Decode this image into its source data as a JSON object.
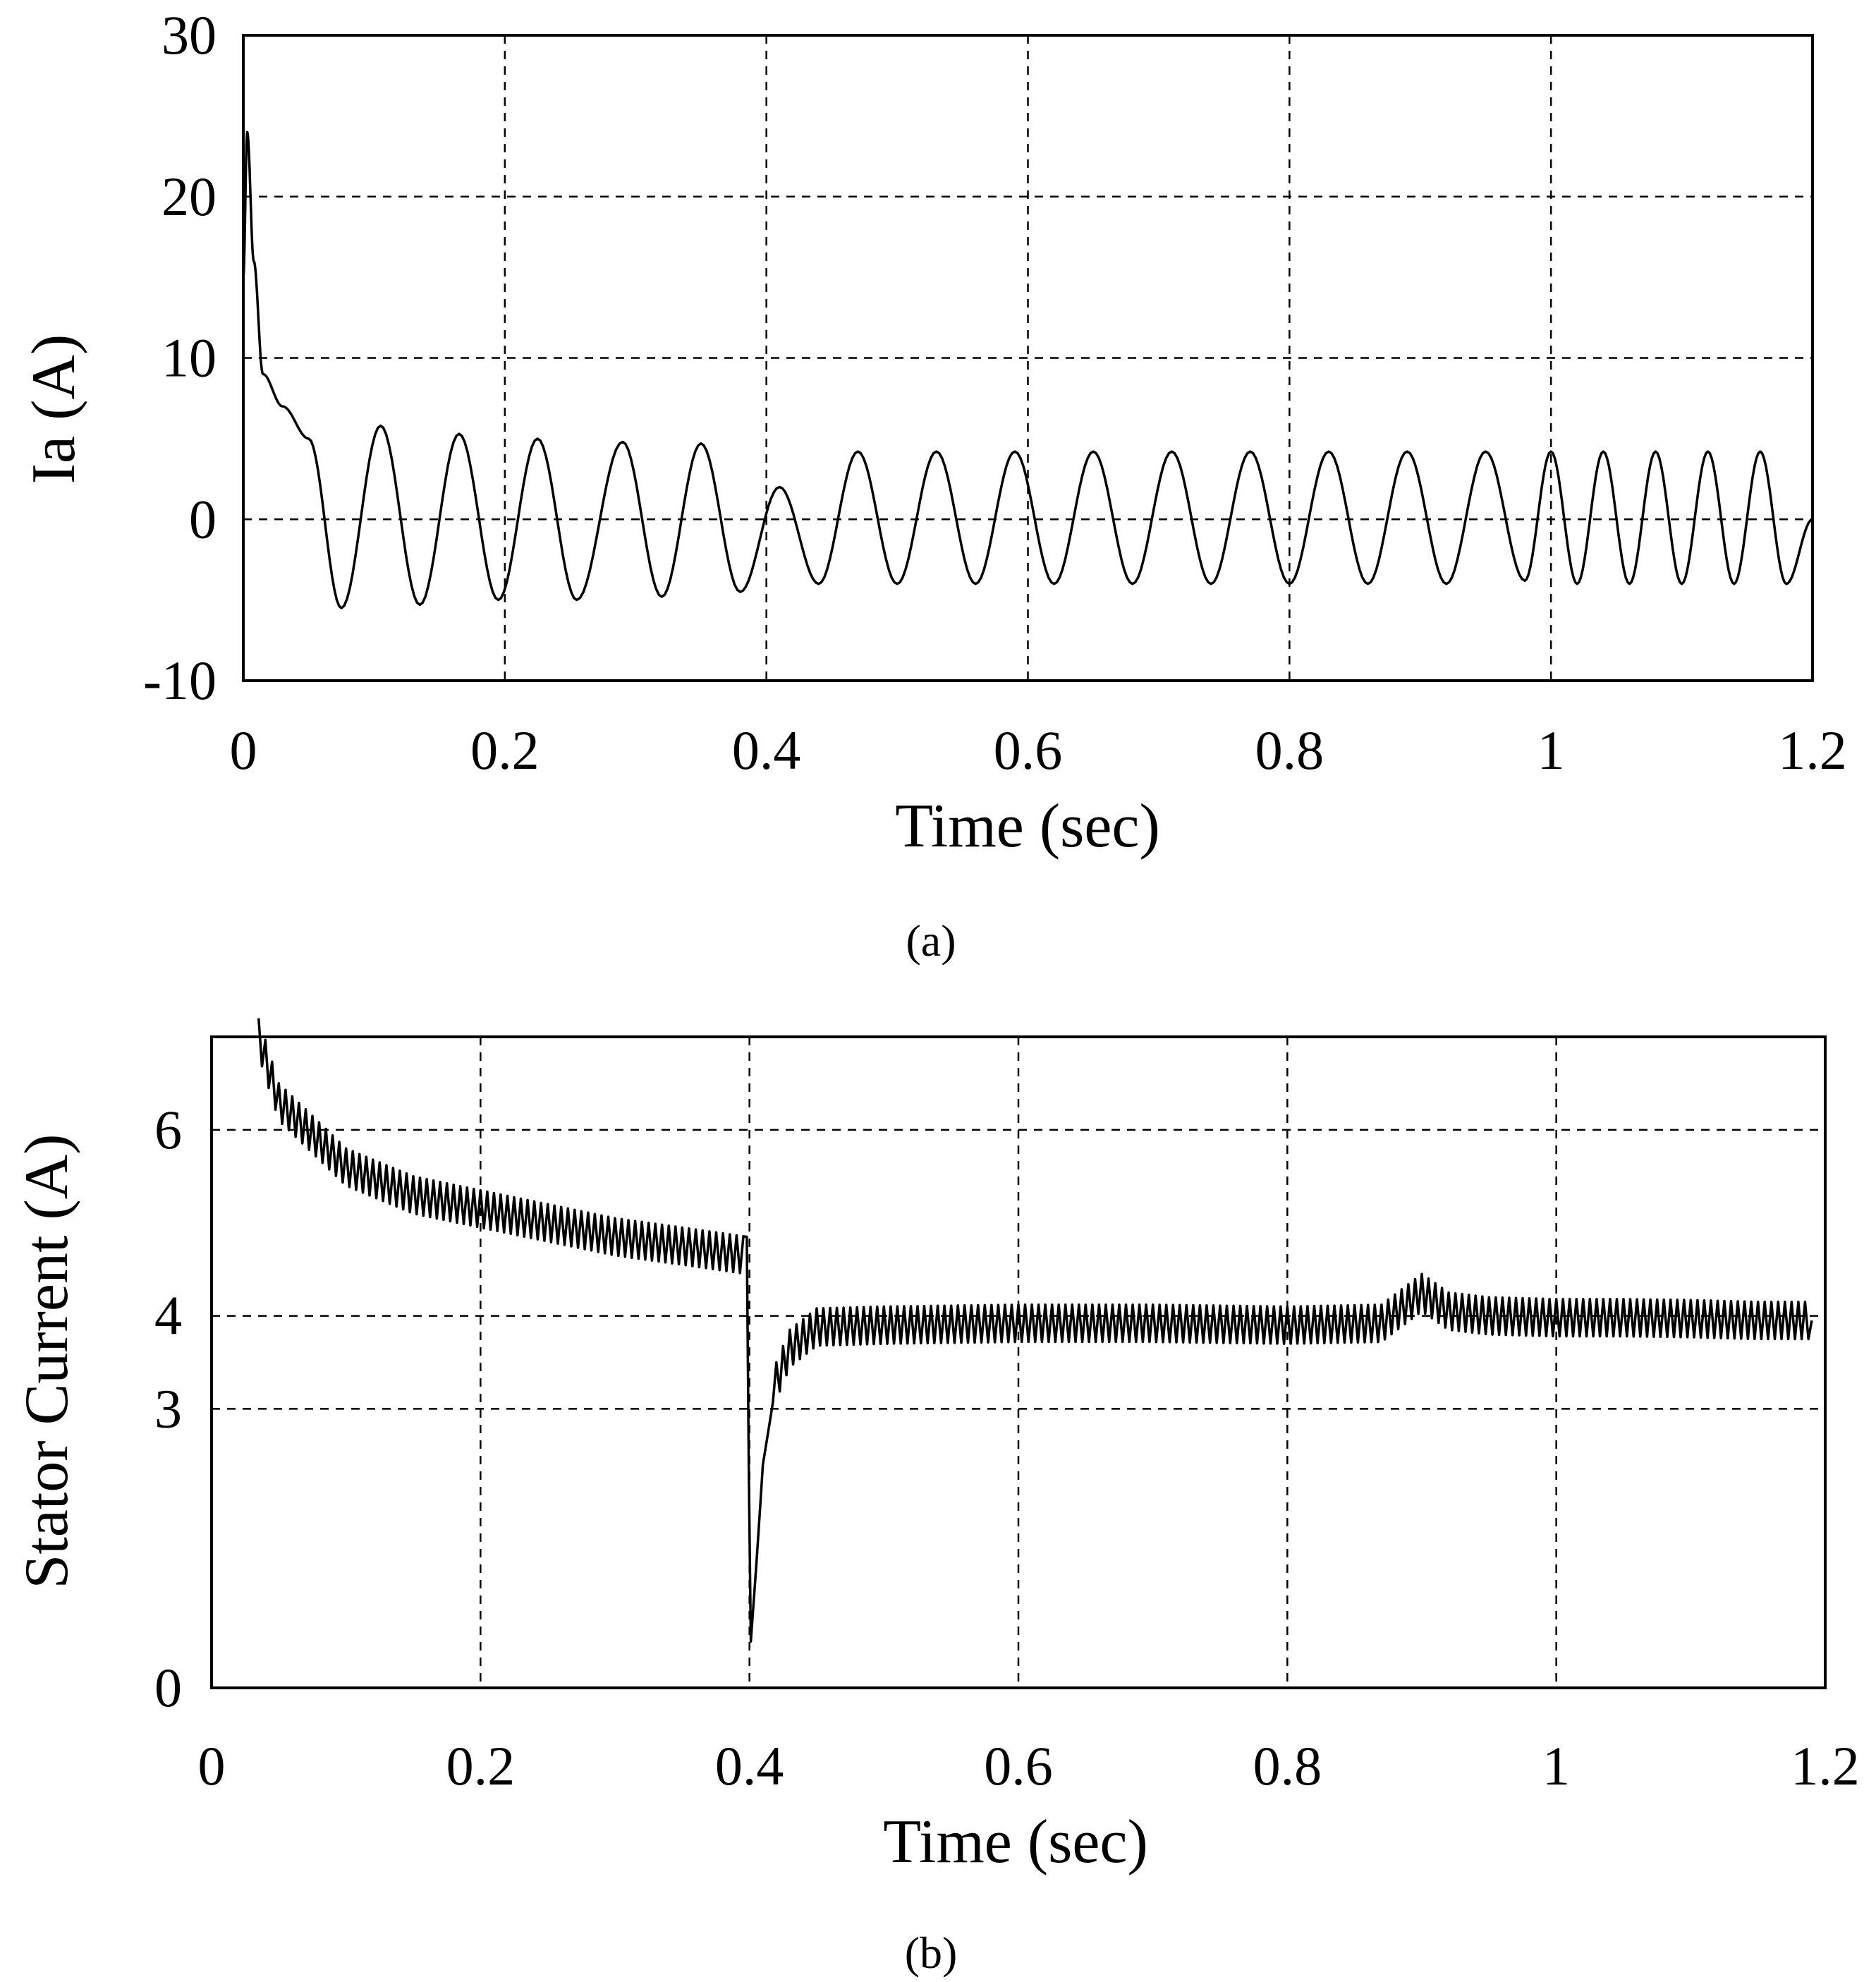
{
  "chart_data": [
    {
      "id": "a",
      "type": "line",
      "xlabel": "Time (sec)",
      "ylabel": "Ia (A)",
      "caption": "(a)",
      "xlim": [
        0,
        1.2
      ],
      "ylim": [
        -10,
        30
      ],
      "xticks": [
        0,
        0.2,
        0.4,
        0.6,
        0.8,
        1,
        1.2
      ],
      "xtick_labels": [
        "0",
        "0.2",
        "0.4",
        "0.6",
        "0.8",
        "1",
        "1.2"
      ],
      "yticks": [
        -10,
        0,
        10,
        20,
        30
      ],
      "ytick_labels": [
        "-10",
        "0",
        "10",
        "20",
        "30"
      ],
      "grid": true,
      "series": [
        {
          "name": "Ia",
          "description": "Phase-a stator current: start-up transient peaking near 24 A, settling to a sinusoid of about ±5 A before 0.4 s and about ±4 A after 0.4 s with increasing frequency after 1 s",
          "x": [
            0,
            0.003,
            0.008,
            0.015,
            0.03,
            0.05,
            0.075,
            0.105,
            0.135,
            0.165,
            0.195,
            0.225,
            0.255,
            0.29,
            0.32,
            0.35,
            0.38,
            0.41,
            0.44,
            0.47,
            0.5,
            0.53,
            0.56,
            0.59,
            0.62,
            0.65,
            0.68,
            0.71,
            0.74,
            0.77,
            0.8,
            0.83,
            0.86,
            0.89,
            0.92,
            0.95,
            0.98,
            1.0,
            1.02,
            1.04,
            1.06,
            1.08,
            1.1,
            1.12,
            1.14,
            1.16,
            1.18,
            1.2
          ],
          "y": [
            15,
            24,
            16,
            9,
            7,
            5,
            -5.5,
            5.8,
            -5.3,
            5.3,
            -5,
            5,
            -5,
            4.8,
            -4.8,
            4.7,
            -4.5,
            2,
            -4,
            4.2,
            -4,
            4.2,
            -4,
            4.2,
            -4,
            4.2,
            -4,
            4.2,
            -4,
            4.2,
            -4,
            4.2,
            -4,
            4.2,
            -4,
            4.2,
            -3.8,
            4.2,
            -4,
            4.2,
            -4,
            4.2,
            -4,
            4.2,
            -4,
            4.2,
            -4,
            0
          ]
        }
      ]
    },
    {
      "id": "b",
      "type": "line",
      "xlabel": "Time (sec)",
      "ylabel": "Stator Current (A)",
      "caption": "(b)",
      "xlim": [
        0,
        1.2
      ],
      "ylim": [
        0,
        7
      ],
      "xticks": [
        0,
        0.2,
        0.4,
        0.6,
        0.8,
        1,
        1.2
      ],
      "xtick_labels": [
        "0",
        "0.2",
        "0.4",
        "0.6",
        "0.8",
        "1",
        "1.2"
      ],
      "yticks": [
        0,
        3,
        4,
        6
      ],
      "ytick_labels": [
        "0",
        "3",
        "4",
        "6"
      ],
      "grid": true,
      "series": [
        {
          "name": "Stator current magnitude",
          "description": "Decays from about 7 A to 4.6 A by 0.4 s with ripple of about ±0.2 A, dips to about 0.5 A at 0.4 s, recovers to about 3.9 A by 0.45 s, small bump near 0.9 s",
          "x": [
            0.035,
            0.05,
            0.1,
            0.15,
            0.2,
            0.25,
            0.3,
            0.35,
            0.398,
            0.401,
            0.405,
            0.41,
            0.42,
            0.43,
            0.45,
            0.5,
            0.6,
            0.7,
            0.8,
            0.87,
            0.9,
            0.92,
            0.95,
            1.0,
            1.05,
            1.1,
            1.15,
            1.19
          ],
          "y": [
            7.0,
            6.3,
            5.6,
            5.3,
            5.15,
            5.0,
            4.85,
            4.75,
            4.65,
            0.5,
            1.3,
            2.4,
            3.3,
            3.65,
            3.88,
            3.9,
            3.92,
            3.92,
            3.9,
            3.92,
            4.25,
            4.05,
            4.0,
            3.98,
            3.98,
            3.97,
            3.95,
            3.95
          ],
          "ripple": 0.2
        }
      ]
    }
  ]
}
